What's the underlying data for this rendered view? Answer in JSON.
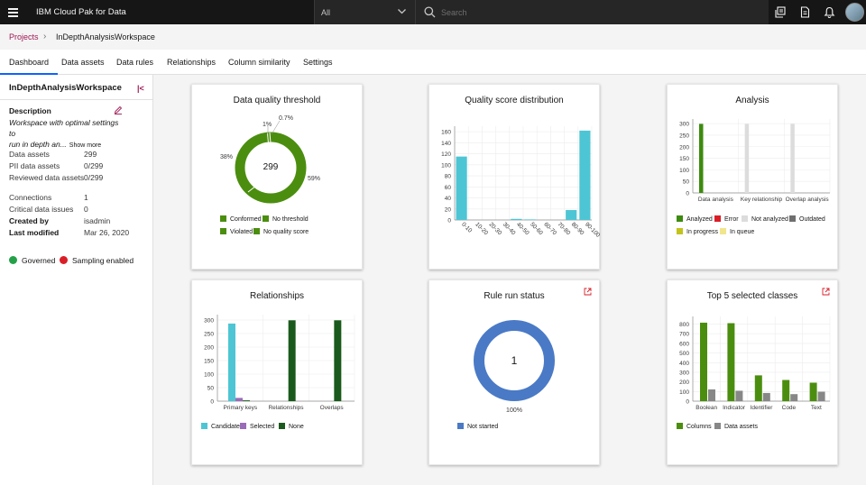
{
  "topbar": {
    "brand": "IBM Cloud Pak for Data",
    "scope_value": "All",
    "search_placeholder": "Search"
  },
  "breadcrumb": {
    "root": "Projects",
    "current": "InDepthAnalysisWorkspace"
  },
  "tabs": [
    "Dashboard",
    "Data assets",
    "Data rules",
    "Relationships",
    "Column similarity",
    "Settings"
  ],
  "active_tab": "Dashboard",
  "sidebar": {
    "title": "InDepthAnalysisWorkspace",
    "collapse_glyph": "|<",
    "description_label": "Description",
    "description_line1": "Workspace with optimal settings to",
    "description_line2": "run in depth an...",
    "show_more": "Show more",
    "stats1": [
      {
        "label": "Data assets",
        "value": "299"
      },
      {
        "label": "PII data assets",
        "value": "0/299"
      },
      {
        "label": "Reviewed data assets",
        "value": "0/299"
      }
    ],
    "stats2": [
      {
        "label": "Connections",
        "value": "1"
      },
      {
        "label": "Critical data issues",
        "value": "0"
      },
      {
        "label": "Created by",
        "value": "isadmin"
      },
      {
        "label": "Last modified",
        "value": "Mar 26, 2020"
      }
    ],
    "governed_label": "Governed",
    "sampling_label": "Sampling enabled",
    "governed_color": "#24a148",
    "sampling_color": "#da1e28"
  },
  "cards": {
    "dq_threshold": {
      "title": "Data quality threshold"
    },
    "quality_dist": {
      "title": "Quality score distribution"
    },
    "analysis": {
      "title": "Analysis"
    },
    "relationships": {
      "title": "Relationships"
    },
    "rule_run": {
      "title": "Rule run status"
    },
    "top5": {
      "title": "Top 5 selected classes"
    }
  },
  "chart_data": [
    {
      "id": "dq_threshold",
      "type": "pie",
      "donut": true,
      "center_label": "299",
      "slices": [
        {
          "name": "Conformed",
          "pct": 59,
          "label": "59%",
          "color": "#4b8e0f"
        },
        {
          "name": "Violated",
          "pct": 38,
          "label": "38%",
          "color": "#4b8e0f"
        },
        {
          "name": "No threshold",
          "pct": 1,
          "label": "1%",
          "color": "#c8dcb4"
        },
        {
          "name": "No quality score",
          "pct": 0.7,
          "label": "0.7%",
          "color": "#4b8e0f"
        }
      ],
      "legend": [
        {
          "name": "Conformed",
          "color": "#4b8e0f"
        },
        {
          "name": "No threshold",
          "color": "#4b8e0f"
        },
        {
          "name": "Violated",
          "color": "#4b8e0f"
        },
        {
          "name": "No quality score",
          "color": "#4b8e0f"
        }
      ]
    },
    {
      "id": "quality_dist",
      "type": "bar",
      "categories": [
        "0-10",
        "10-20",
        "20-30",
        "30-40",
        "40-50",
        "50-60",
        "60-70",
        "70-80",
        "80-90",
        "90-100"
      ],
      "values": [
        115,
        0,
        0,
        0,
        2,
        1,
        0,
        0,
        18,
        162
      ],
      "ylim": [
        0,
        170
      ],
      "yticks": [
        0,
        20,
        40,
        60,
        80,
        100,
        120,
        140,
        160
      ],
      "color": "#4ec5d4",
      "grid": true
    },
    {
      "id": "analysis",
      "type": "bar",
      "categories": [
        "Data analysis",
        "Key relationship",
        "Overlap analysis"
      ],
      "series": [
        {
          "name": "Analyzed",
          "color": "#3d8b0f",
          "values": [
            299,
            0,
            0
          ]
        },
        {
          "name": "Not analyzed",
          "color": "#dcdcdc",
          "values": [
            0,
            299,
            299
          ]
        }
      ],
      "ylim": [
        0,
        320
      ],
      "yticks": [
        0,
        50,
        100,
        150,
        200,
        250,
        300
      ],
      "legend": [
        {
          "name": "Analyzed",
          "color": "#3d8b0f"
        },
        {
          "name": "Error",
          "color": "#da1e28"
        },
        {
          "name": "Not analyzed",
          "color": "#dcdcdc"
        },
        {
          "name": "Outdated",
          "color": "#6f6f6f"
        },
        {
          "name": "In progress",
          "color": "#c3c31c"
        },
        {
          "name": "In queue",
          "color": "#f1e58d"
        }
      ],
      "grid": true
    },
    {
      "id": "relationships",
      "type": "bar",
      "categories": [
        "Primary keys",
        "Relationships",
        "Overlaps"
      ],
      "series": [
        {
          "name": "Candidate",
          "color": "#4ec5d4",
          "values": [
            287,
            0,
            0
          ]
        },
        {
          "name": "Selected",
          "color": "#9a6bb8",
          "values": [
            12,
            0,
            0
          ]
        },
        {
          "name": "None",
          "color": "#1a5a1c",
          "values": [
            3,
            299,
            299
          ]
        }
      ],
      "ylim": [
        0,
        320
      ],
      "yticks": [
        0,
        50,
        100,
        150,
        200,
        250,
        300
      ],
      "grid": true
    },
    {
      "id": "rule_run",
      "type": "pie",
      "donut": true,
      "center_label": "1",
      "slices": [
        {
          "name": "Not started",
          "pct": 100,
          "label": "100%",
          "color": "#4a7ac6"
        }
      ]
    },
    {
      "id": "top5",
      "type": "bar",
      "categories": [
        "Boolean",
        "Indicator",
        "Identifier",
        "Code",
        "Text"
      ],
      "series": [
        {
          "name": "Columns",
          "color": "#4b8e0f",
          "values": [
            815,
            810,
            268,
            220,
            192
          ]
        },
        {
          "name": "Data assets",
          "color": "#878787",
          "values": [
            122,
            108,
            85,
            73,
            98
          ]
        }
      ],
      "ylim": [
        0,
        880
      ],
      "yticks": [
        0,
        100,
        200,
        300,
        400,
        500,
        600,
        700,
        800
      ],
      "grid": true
    }
  ]
}
